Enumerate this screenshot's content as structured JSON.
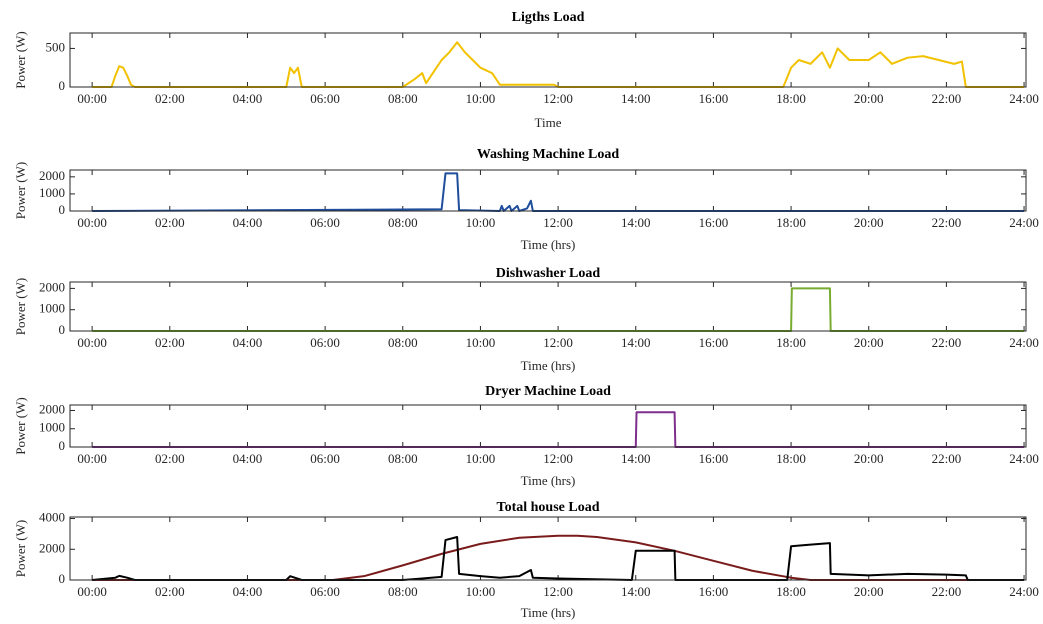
{
  "chart_data": [
    {
      "type": "line",
      "title": "Ligths Load",
      "xlabel": "Time",
      "ylabel": "Power (W)",
      "xlim": [
        -0.57,
        24.05
      ],
      "ylim": [
        0,
        700
      ],
      "yticks": [
        0,
        500
      ],
      "xticks": [
        {
          "value": 0,
          "label": "00:00"
        },
        {
          "value": 2,
          "label": "02:00"
        },
        {
          "value": 4,
          "label": "04:00"
        },
        {
          "value": 6,
          "label": "06:00"
        },
        {
          "value": 8,
          "label": "08:00"
        },
        {
          "value": 10,
          "label": "10:00"
        },
        {
          "value": 12,
          "label": "12:00"
        },
        {
          "value": 14,
          "label": "14:00"
        },
        {
          "value": 16,
          "label": "16:00"
        },
        {
          "value": 18,
          "label": "18:00"
        },
        {
          "value": 20,
          "label": "20:00"
        },
        {
          "value": 22,
          "label": "22:00"
        },
        {
          "value": 24,
          "label": "24:00"
        }
      ],
      "series": [
        {
          "color": "#f2c200",
          "x": [
            0,
            0.5,
            0.6,
            0.7,
            0.8,
            0.9,
            1.0,
            1.1,
            5.0,
            5.1,
            5.2,
            5.3,
            5.4,
            8.0,
            8.3,
            8.5,
            8.6,
            8.8,
            9.0,
            9.2,
            9.4,
            9.6,
            9.8,
            10.0,
            10.3,
            10.5,
            10.6,
            11.9,
            12.0,
            17.8,
            18.0,
            18.2,
            18.5,
            18.8,
            19.0,
            19.2,
            19.5,
            20.0,
            20.3,
            20.6,
            21.0,
            21.4,
            21.8,
            22.2,
            22.4,
            22.5,
            24
          ],
          "values": [
            0,
            0,
            150,
            270,
            250,
            150,
            30,
            0,
            0,
            250,
            180,
            250,
            0,
            0,
            100,
            180,
            50,
            200,
            350,
            450,
            580,
            450,
            350,
            250,
            180,
            30,
            30,
            30,
            0,
            0,
            250,
            350,
            300,
            450,
            250,
            500,
            350,
            350,
            450,
            300,
            380,
            400,
            350,
            300,
            330,
            0,
            0
          ]
        }
      ]
    },
    {
      "type": "line",
      "title": "Washing Machine Load",
      "xlabel": "Time (hrs)",
      "ylabel": "Power (W)",
      "xlim": [
        -0.57,
        24.05
      ],
      "ylim": [
        0,
        2400
      ],
      "yticks": [
        0,
        1000,
        2000
      ],
      "xticks": [
        {
          "value": 0,
          "label": "00:00"
        },
        {
          "value": 2,
          "label": "02:00"
        },
        {
          "value": 4,
          "label": "04:00"
        },
        {
          "value": 6,
          "label": "06:00"
        },
        {
          "value": 8,
          "label": "08:00"
        },
        {
          "value": 10,
          "label": "10:00"
        },
        {
          "value": 12,
          "label": "12:00"
        },
        {
          "value": 14,
          "label": "14:00"
        },
        {
          "value": 16,
          "label": "16:00"
        },
        {
          "value": 18,
          "label": "18:00"
        },
        {
          "value": 20,
          "label": "20:00"
        },
        {
          "value": 22,
          "label": "22:00"
        },
        {
          "value": 24,
          "label": "24:00"
        }
      ],
      "series": [
        {
          "color": "#1f4e9c",
          "x": [
            0,
            9.0,
            9.1,
            9.4,
            9.45,
            10.5,
            10.55,
            10.6,
            10.75,
            10.8,
            10.95,
            11.0,
            11.2,
            11.3,
            11.35,
            24
          ],
          "values": [
            0,
            100,
            2200,
            2200,
            50,
            0,
            300,
            0,
            300,
            0,
            300,
            0,
            150,
            600,
            0,
            0
          ]
        }
      ]
    },
    {
      "type": "line",
      "title": "Dishwasher Load",
      "xlabel": "Time (hrs)",
      "ylabel": "Power (W)",
      "xlim": [
        -0.57,
        24.05
      ],
      "ylim": [
        0,
        2300
      ],
      "yticks": [
        0,
        1000,
        2000
      ],
      "xticks": [
        {
          "value": 0,
          "label": "00:00"
        },
        {
          "value": 2,
          "label": "02:00"
        },
        {
          "value": 4,
          "label": "04:00"
        },
        {
          "value": 6,
          "label": "06:00"
        },
        {
          "value": 8,
          "label": "08:00"
        },
        {
          "value": 10,
          "label": "10:00"
        },
        {
          "value": 12,
          "label": "12:00"
        },
        {
          "value": 14,
          "label": "14:00"
        },
        {
          "value": 16,
          "label": "16:00"
        },
        {
          "value": 18,
          "label": "18:00"
        },
        {
          "value": 20,
          "label": "20:00"
        },
        {
          "value": 22,
          "label": "22:00"
        },
        {
          "value": 24,
          "label": "24:00"
        }
      ],
      "series": [
        {
          "color": "#77ac30",
          "x": [
            0,
            18.0,
            18.02,
            19.0,
            19.02,
            24
          ],
          "values": [
            0,
            0,
            2000,
            2000,
            0,
            0
          ]
        }
      ]
    },
    {
      "type": "line",
      "title": "Dryer Machine Load",
      "xlabel": "Time (hrs)",
      "ylabel": "Power (W)",
      "xlim": [
        -0.57,
        24.05
      ],
      "ylim": [
        0,
        2300
      ],
      "yticks": [
        0,
        1000,
        2000
      ],
      "xticks": [
        {
          "value": 0,
          "label": "00:00"
        },
        {
          "value": 2,
          "label": "02:00"
        },
        {
          "value": 4,
          "label": "04:00"
        },
        {
          "value": 6,
          "label": "06:00"
        },
        {
          "value": 8,
          "label": "08:00"
        },
        {
          "value": 10,
          "label": "10:00"
        },
        {
          "value": 12,
          "label": "12:00"
        },
        {
          "value": 14,
          "label": "14:00"
        },
        {
          "value": 16,
          "label": "16:00"
        },
        {
          "value": 18,
          "label": "18:00"
        },
        {
          "value": 20,
          "label": "20:00"
        },
        {
          "value": 22,
          "label": "22:00"
        },
        {
          "value": 24,
          "label": "24:00"
        }
      ],
      "series": [
        {
          "color": "#7e2f8e",
          "x": [
            0,
            14.0,
            14.02,
            15.0,
            15.02,
            24
          ],
          "values": [
            0,
            0,
            1900,
            1900,
            0,
            0
          ]
        }
      ]
    },
    {
      "type": "line",
      "title": "Total house Load",
      "xlabel": "Time (hrs)",
      "ylabel": "Power (W)",
      "xlim": [
        -0.57,
        24.05
      ],
      "ylim": [
        0,
        4100
      ],
      "yticks": [
        0,
        2000,
        4000
      ],
      "xticks": [
        {
          "value": 0,
          "label": "00:00"
        },
        {
          "value": 2,
          "label": "02:00"
        },
        {
          "value": 4,
          "label": "04:00"
        },
        {
          "value": 6,
          "label": "06:00"
        },
        {
          "value": 8,
          "label": "08:00"
        },
        {
          "value": 10,
          "label": "10:00"
        },
        {
          "value": 12,
          "label": "12:00"
        },
        {
          "value": 14,
          "label": "14:00"
        },
        {
          "value": 16,
          "label": "16:00"
        },
        {
          "value": 18,
          "label": "18:00"
        },
        {
          "value": 20,
          "label": "20:00"
        },
        {
          "value": 22,
          "label": "22:00"
        },
        {
          "value": 24,
          "label": "24:00"
        }
      ],
      "series": [
        {
          "color": "#7a1b1b",
          "x": [
            0,
            6.2,
            7,
            8,
            9,
            10,
            11,
            12,
            12.5,
            13,
            14,
            15,
            16,
            17,
            18,
            18.5,
            24
          ],
          "values": [
            0,
            0,
            250,
            950,
            1700,
            2350,
            2750,
            2880,
            2880,
            2800,
            2450,
            1900,
            1250,
            600,
            150,
            0,
            0
          ]
        },
        {
          "color": "#000000",
          "x": [
            0,
            0.6,
            0.7,
            0.9,
            1.1,
            5.0,
            5.1,
            5.4,
            8.0,
            8.5,
            9.0,
            9.1,
            9.4,
            9.45,
            10.0,
            10.5,
            11.0,
            11.3,
            11.35,
            12.0,
            13.9,
            14.0,
            15.0,
            15.02,
            17.9,
            18.0,
            18.5,
            19.0,
            19.02,
            20.0,
            21.0,
            22.0,
            22.5,
            22.55,
            24
          ],
          "values": [
            0,
            150,
            270,
            150,
            0,
            0,
            250,
            0,
            0,
            100,
            200,
            2600,
            2800,
            400,
            250,
            150,
            250,
            650,
            150,
            100,
            0,
            1900,
            1900,
            0,
            0,
            2200,
            2300,
            2400,
            400,
            300,
            400,
            350,
            300,
            0,
            0
          ]
        }
      ]
    }
  ]
}
